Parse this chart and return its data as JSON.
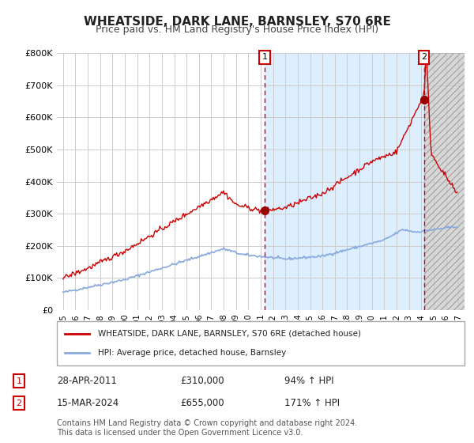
{
  "title": "WHEATSIDE, DARK LANE, BARNSLEY, S70 6RE",
  "subtitle": "Price paid vs. HM Land Registry's House Price Index (HPI)",
  "title_fontsize": 11,
  "subtitle_fontsize": 9,
  "ylim": [
    0,
    800000
  ],
  "yticks": [
    0,
    100000,
    200000,
    300000,
    400000,
    500000,
    600000,
    700000,
    800000
  ],
  "ytick_labels": [
    "£0",
    "£100K",
    "£200K",
    "£300K",
    "£400K",
    "£500K",
    "£600K",
    "£700K",
    "£800K"
  ],
  "xlim_start": 1994.5,
  "xlim_end": 2027.5,
  "xticks": [
    1995,
    1996,
    1997,
    1998,
    1999,
    2000,
    2001,
    2002,
    2003,
    2004,
    2005,
    2006,
    2007,
    2008,
    2009,
    2010,
    2011,
    2012,
    2013,
    2014,
    2015,
    2016,
    2017,
    2018,
    2019,
    2020,
    2021,
    2022,
    2023,
    2024,
    2025,
    2026,
    2027
  ],
  "background_color": "#ffffff",
  "plot_bg_color_left": "#ddeeff",
  "plot_bg_color_right": "#e8e8e8",
  "grid_color": "#cccccc",
  "red_line_color": "#cc0000",
  "blue_line_color": "#88aadd",
  "marker_color": "#990000",
  "vline_color": "#cc0000",
  "shade_start": 2011.32,
  "shade_end": 2024.21,
  "hatch_start": 2024.21,
  "hatch_end": 2027.5,
  "point1_x": 2011.32,
  "point1_y": 310000,
  "point2_x": 2024.21,
  "point2_y": 655000,
  "legend_red_label": "WHEATSIDE, DARK LANE, BARNSLEY, S70 6RE (detached house)",
  "legend_blue_label": "HPI: Average price, detached house, Barnsley",
  "table_rows": [
    {
      "num": "1",
      "date": "28-APR-2011",
      "price": "£310,000",
      "hpi": "94% ↑ HPI"
    },
    {
      "num": "2",
      "date": "15-MAR-2024",
      "price": "£655,000",
      "hpi": "171% ↑ HPI"
    }
  ],
  "footnote": "Contains HM Land Registry data © Crown copyright and database right 2024.\nThis data is licensed under the Open Government Licence v3.0.",
  "footnote_fontsize": 7
}
